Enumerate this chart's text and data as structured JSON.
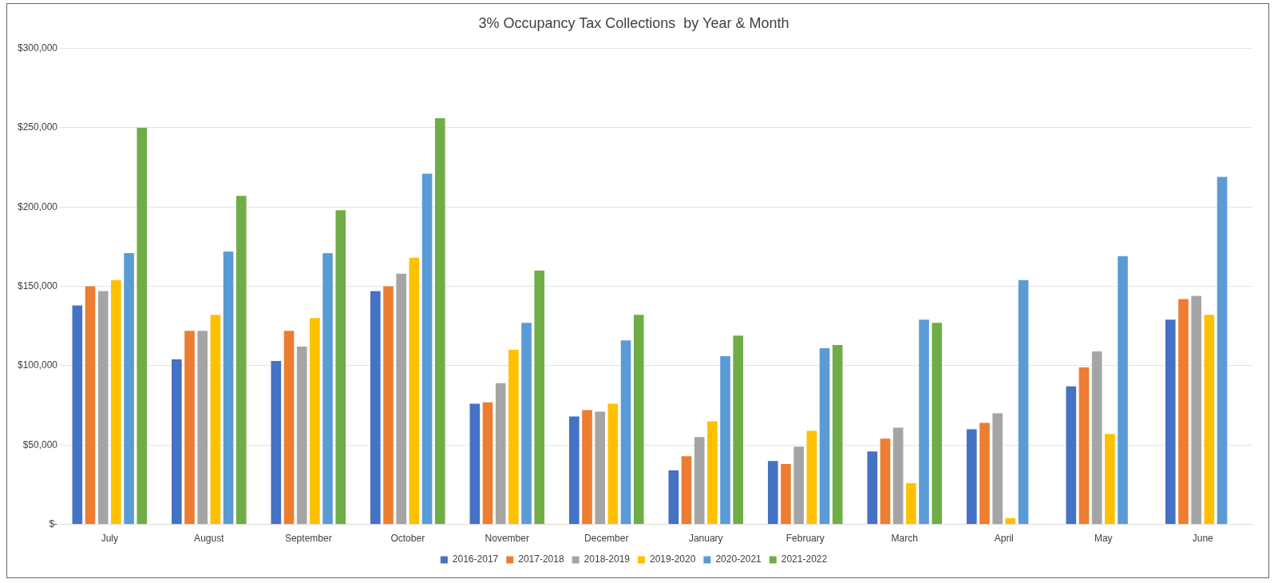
{
  "chart_data": {
    "type": "bar",
    "title": "3% Occupancy Tax Collections  by Year & Month",
    "categories": [
      "July",
      "August",
      "September",
      "October",
      "November",
      "December",
      "January",
      "February",
      "March",
      "April",
      "May",
      "June"
    ],
    "series": [
      {
        "name": "2016-2017",
        "color": "#4472c4",
        "values": [
          138000,
          104000,
          103000,
          147000,
          76000,
          68000,
          34000,
          40000,
          46000,
          60000,
          87000,
          129000
        ]
      },
      {
        "name": "2017-2018",
        "color": "#ed7d31",
        "values": [
          150000,
          122000,
          122000,
          150000,
          77000,
          72000,
          43000,
          38000,
          54000,
          64000,
          99000,
          142000
        ]
      },
      {
        "name": "2018-2019",
        "color": "#a5a5a5",
        "values": [
          147000,
          122000,
          112000,
          158000,
          89000,
          71000,
          55000,
          49000,
          61000,
          70000,
          109000,
          144000
        ]
      },
      {
        "name": "2019-2020",
        "color": "#ffc000",
        "values": [
          154000,
          132000,
          130000,
          168000,
          110000,
          76000,
          65000,
          59000,
          26000,
          4000,
          57000,
          132000
        ]
      },
      {
        "name": "2020-2021",
        "color": "#5b9bd5",
        "values": [
          171000,
          172000,
          171000,
          221000,
          127000,
          116000,
          106000,
          111000,
          129000,
          154000,
          169000,
          219000
        ]
      },
      {
        "name": "2021-2022",
        "color": "#70ad47",
        "values": [
          250000,
          207000,
          198000,
          256000,
          160000,
          132000,
          119000,
          113000,
          127000,
          null,
          null,
          null
        ]
      }
    ],
    "ylim": [
      0,
      300000
    ],
    "yticks": [
      {
        "value": 0,
        "label": "$-"
      },
      {
        "value": 50000,
        "label": "$50,000"
      },
      {
        "value": 100000,
        "label": "$100,000"
      },
      {
        "value": 150000,
        "label": "$150,000"
      },
      {
        "value": 200000,
        "label": "$200,000"
      },
      {
        "value": 250000,
        "label": "$250,000"
      },
      {
        "value": 300000,
        "label": "$300,000"
      }
    ],
    "grid": "y",
    "legend": "bottom"
  }
}
